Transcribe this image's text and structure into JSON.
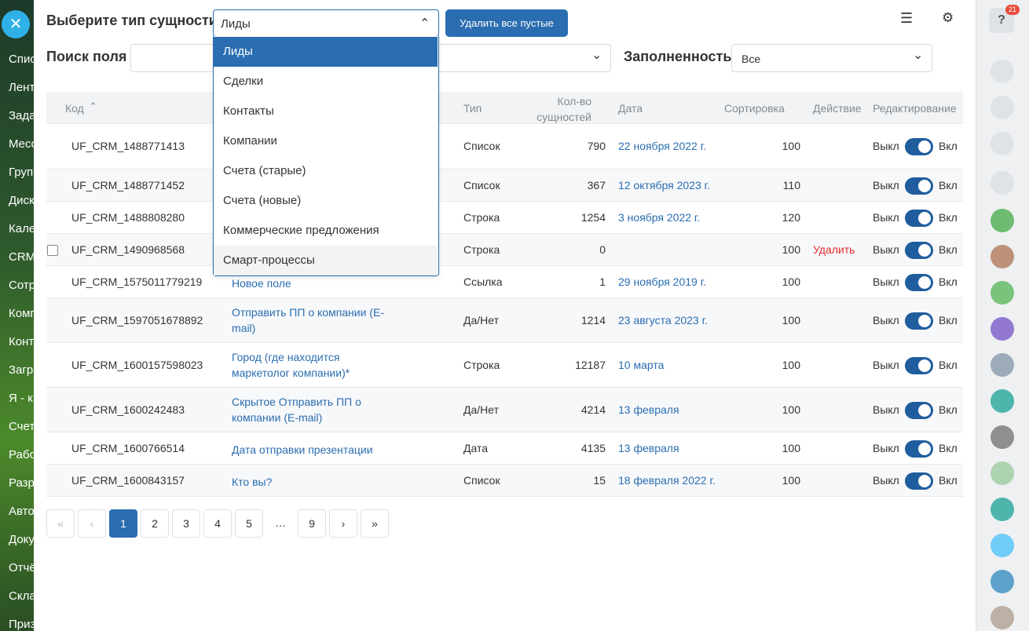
{
  "sidebar": {
    "items": [
      "Спис",
      "Лент",
      "Зада",
      "Месс",
      "Груп",
      "Диск",
      "Кале",
      "CRM",
      "Сотр",
      "Комп",
      "Конт",
      "Загр",
      "Я - к",
      "Счет",
      "Рабо",
      "Разр",
      "Авто",
      "Доку",
      "Отчё",
      "Скла",
      "Приз"
    ]
  },
  "header": {
    "entity_label": "Выберите тип сущности",
    "entity_selected": "Лиды",
    "delete_button": "Удалить все пустые",
    "search_label": "Поиск поля",
    "fill_label": "Заполненность",
    "fill_selected": "Все"
  },
  "dropdown": {
    "options": [
      "Лиды",
      "Сделки",
      "Контакты",
      "Компании",
      "Счета (старые)",
      "Счета (новые)",
      "Коммерческие предложения",
      "Смарт-процессы"
    ]
  },
  "table": {
    "columns": {
      "code": "Код",
      "type": "Тип",
      "count": "Кол-во сущностей",
      "date": "Дата",
      "sort": "Сортировка",
      "action": "Действие",
      "edit": "Редактирование"
    },
    "toggle_off": "Выкл",
    "toggle_on": "Вкл",
    "rows": [
      [
        "UF_CRM_1488771413",
        null,
        "Список",
        790,
        "22 ноября 2022 г.",
        100,
        null
      ],
      [
        "UF_CRM_1488771452",
        null,
        "Список",
        367,
        "12 октября 2023 г.",
        110,
        null
      ],
      [
        "UF_CRM_1488808280",
        null,
        "Строка",
        1254,
        "3 ноября 2022 г.",
        120,
        null
      ],
      [
        "UF_CRM_1490968568",
        null,
        "Строка",
        0,
        null,
        100,
        "Удалить"
      ],
      [
        "UF_CRM_1575011779219",
        "Новое поле",
        "Ссылка",
        1,
        "29 ноября 2019 г.",
        100,
        null
      ],
      [
        "UF_CRM_1597051678892",
        "Отправить ПП о компании (E-mail)",
        "Да/Нет",
        1214,
        "23 августа 2023 г.",
        100,
        null
      ],
      [
        "UF_CRM_1600157598023",
        "Город (где находится маркетолог компании)*",
        "Строка",
        12187,
        "10 марта",
        100,
        null
      ],
      [
        "UF_CRM_1600242483",
        "Скрытое Отправить ПП о компании (E-mail)",
        "Да/Нет",
        4214,
        "13 февраля",
        100,
        null
      ],
      [
        "UF_CRM_1600766514",
        "Дата отправки презентации",
        "Дата",
        4135,
        "13 февраля",
        100,
        null
      ],
      [
        "UF_CRM_1600843157",
        "Кто вы?",
        "Список",
        15,
        "18 февраля 2022 г.",
        100,
        null
      ]
    ]
  },
  "pagination": {
    "pages": [
      1,
      2,
      3,
      4,
      5,
      "…",
      9
    ]
  },
  "notifications": {
    "badge": 21
  }
}
